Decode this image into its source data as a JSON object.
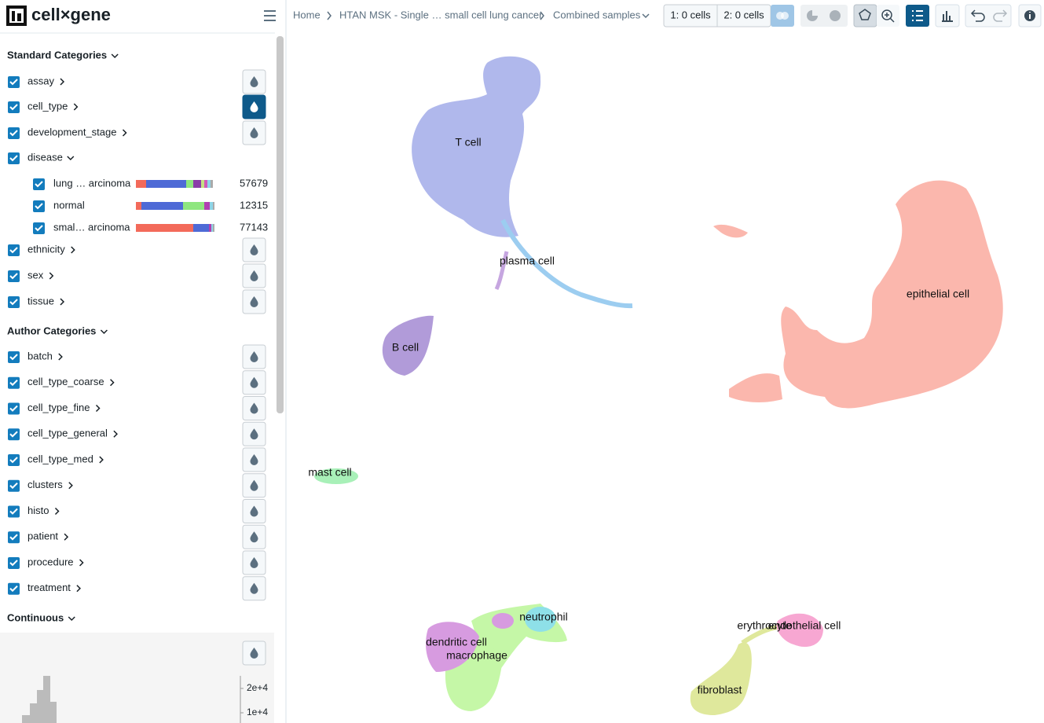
{
  "header": {
    "logo": "cell×gene",
    "breadcrumbs": [
      "Home",
      "HTAN MSK - Single … small cell lung cancer",
      "Combined samples"
    ],
    "selections": [
      "1: 0 cells",
      "2: 0 cells"
    ]
  },
  "sidebar": {
    "standard": {
      "title": "Standard Categories",
      "items": [
        "assay",
        "cell_type",
        "development_stage",
        "disease",
        "ethnicity",
        "sex",
        "tissue"
      ],
      "disease_values": [
        {
          "label": "lung … arcinoma",
          "count": 57679
        },
        {
          "label": "normal",
          "count": 12315
        },
        {
          "label": "smal… arcinoma",
          "count": 77143
        }
      ]
    },
    "author": {
      "title": "Author Categories",
      "items": [
        "batch",
        "cell_type_coarse",
        "cell_type_fine",
        "cell_type_general",
        "cell_type_med",
        "clusters",
        "histo",
        "patient",
        "procedure",
        "treatment"
      ]
    },
    "continuous": {
      "title": "Continuous",
      "axis_ticks": [
        "2e+4",
        "1e+4"
      ]
    }
  },
  "embedding": {
    "labels": [
      "T cell",
      "plasma cell",
      "epithelial cell",
      "B cell",
      "mast cell",
      "neutrophil",
      "dendritic cell",
      "macrophage",
      "erythrocyte",
      "endothelial cell",
      "fibroblast"
    ]
  }
}
